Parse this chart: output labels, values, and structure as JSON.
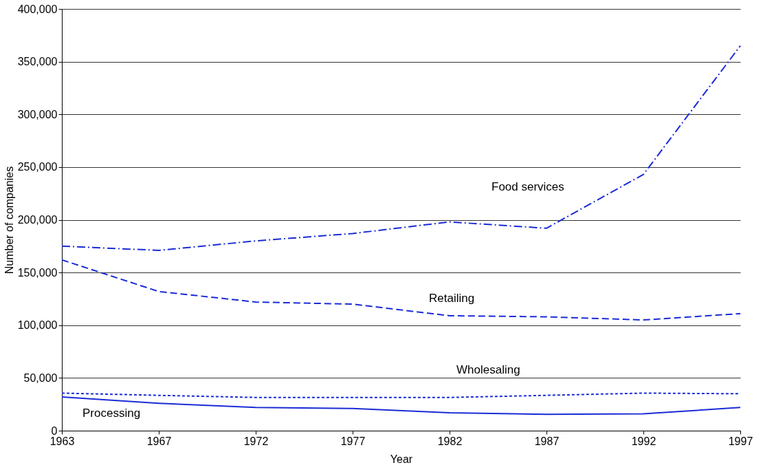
{
  "chart_data": {
    "type": "line",
    "xlabel": "Year",
    "ylabel": "Number of companies",
    "categories": [
      "1963",
      "1967",
      "1972",
      "1977",
      "1982",
      "1987",
      "1992",
      "1997"
    ],
    "ylim": [
      0,
      400000
    ],
    "yticks": [
      {
        "value": 0,
        "label": "0"
      },
      {
        "value": 50000,
        "label": "50,000"
      },
      {
        "value": 100000,
        "label": "100,000"
      },
      {
        "value": 150000,
        "label": "150,000"
      },
      {
        "value": 200000,
        "label": "200,000"
      },
      {
        "value": 250000,
        "label": "250,000"
      },
      {
        "value": 300000,
        "label": "300,000"
      },
      {
        "value": 350000,
        "label": "350,000"
      },
      {
        "value": 400000,
        "label": "400,000"
      }
    ],
    "grid": "y",
    "marker": "none",
    "series": [
      {
        "name": "Food services",
        "color": "#1a2bd6",
        "line_style": "dashdot",
        "values": [
          175000,
          171000,
          180000,
          187000,
          198000,
          192000,
          243000,
          365000
        ]
      },
      {
        "name": "Retailing",
        "color": "#1a2bd6",
        "line_style": "dashed",
        "values": [
          162000,
          132000,
          122000,
          120000,
          109000,
          108000,
          105000,
          111000
        ]
      },
      {
        "name": "Wholesaling",
        "color": "#1a2bd6",
        "line_style": "dotted",
        "values": [
          35600,
          33500,
          31500,
          31500,
          31500,
          33500,
          35600,
          35000
        ]
      },
      {
        "name": "Processing",
        "color": "#1a2bd6",
        "line_style": "solid",
        "values": [
          32000,
          26000,
          22000,
          21000,
          17000,
          15500,
          16000,
          22000
        ]
      }
    ]
  }
}
